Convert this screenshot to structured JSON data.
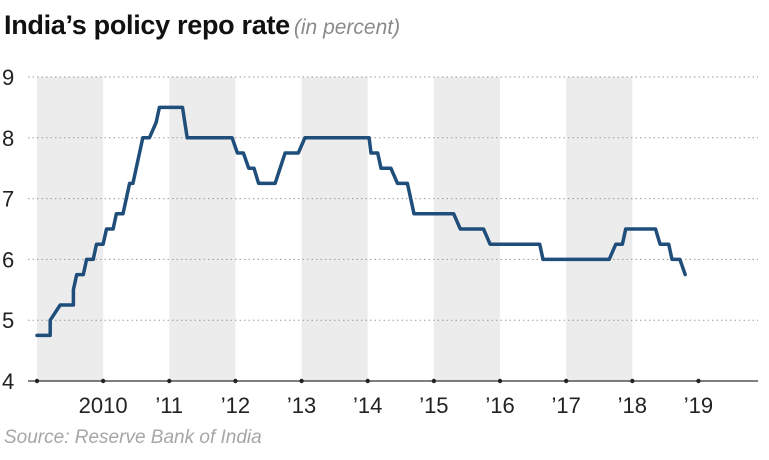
{
  "chart_data": {
    "type": "line",
    "title": "India’s policy repo rate",
    "subtitle": "(in percent)",
    "source": "Source: Reserve Bank of India",
    "xlabel": "",
    "ylabel": "",
    "ylim": [
      4,
      9
    ],
    "y_ticks": [
      4,
      5,
      6,
      7,
      8,
      9
    ],
    "x_range": [
      2009.0,
      2019.9
    ],
    "grid": "horizontal dotted",
    "x_labels": [
      {
        "label": "2010",
        "at": 2010.0
      },
      {
        "label": "’11",
        "at": 2011.0
      },
      {
        "label": "’12",
        "at": 2012.0
      },
      {
        "label": "’13",
        "at": 2013.0
      },
      {
        "label": "’14",
        "at": 2014.0
      },
      {
        "label": "’15",
        "at": 2015.0
      },
      {
        "label": "’16",
        "at": 2016.0
      },
      {
        "label": "’17",
        "at": 2017.0
      },
      {
        "label": "’18",
        "at": 2018.0
      },
      {
        "label": "’19",
        "at": 2019.0
      }
    ],
    "x_markers": [
      2009.0,
      2010.0,
      2011.0,
      2012.0,
      2013.0,
      2014.0,
      2015.0,
      2016.0,
      2017.0,
      2018.0,
      2019.0
    ],
    "shaded_years": [
      [
        2009.0,
        2010.0
      ],
      [
        2011.0,
        2012.0
      ],
      [
        2013.0,
        2014.0
      ],
      [
        2015.0,
        2016.0
      ],
      [
        2017.0,
        2018.0
      ]
    ],
    "series": [
      {
        "name": "Repo rate",
        "color": "#1f4e7a",
        "points": [
          [
            2009.0,
            4.75
          ],
          [
            2009.2,
            4.75
          ],
          [
            2009.2,
            5.0
          ],
          [
            2009.35,
            5.25
          ],
          [
            2009.55,
            5.25
          ],
          [
            2009.55,
            5.5
          ],
          [
            2009.6,
            5.75
          ],
          [
            2009.7,
            5.75
          ],
          [
            2009.75,
            6.0
          ],
          [
            2009.85,
            6.0
          ],
          [
            2009.9,
            6.25
          ],
          [
            2010.0,
            6.25
          ],
          [
            2010.05,
            6.5
          ],
          [
            2010.15,
            6.5
          ],
          [
            2010.2,
            6.75
          ],
          [
            2010.3,
            6.75
          ],
          [
            2010.4,
            7.25
          ],
          [
            2010.45,
            7.25
          ],
          [
            2010.5,
            7.5
          ],
          [
            2010.55,
            7.75
          ],
          [
            2010.6,
            8.0
          ],
          [
            2010.7,
            8.0
          ],
          [
            2010.8,
            8.25
          ],
          [
            2010.85,
            8.5
          ],
          [
            2011.2,
            8.5
          ],
          [
            2011.27,
            8.0
          ],
          [
            2011.95,
            8.0
          ],
          [
            2012.03,
            7.75
          ],
          [
            2012.12,
            7.75
          ],
          [
            2012.2,
            7.5
          ],
          [
            2012.28,
            7.5
          ],
          [
            2012.35,
            7.25
          ],
          [
            2012.6,
            7.25
          ],
          [
            2012.75,
            7.75
          ],
          [
            2012.95,
            7.75
          ],
          [
            2013.05,
            8.0
          ],
          [
            2014.02,
            8.0
          ],
          [
            2014.05,
            7.75
          ],
          [
            2014.15,
            7.75
          ],
          [
            2014.2,
            7.5
          ],
          [
            2014.35,
            7.5
          ],
          [
            2014.45,
            7.25
          ],
          [
            2014.6,
            7.25
          ],
          [
            2014.7,
            6.75
          ],
          [
            2015.3,
            6.75
          ],
          [
            2015.4,
            6.5
          ],
          [
            2015.75,
            6.5
          ],
          [
            2015.85,
            6.25
          ],
          [
            2016.6,
            6.25
          ],
          [
            2016.65,
            6.0
          ],
          [
            2017.65,
            6.0
          ],
          [
            2017.75,
            6.25
          ],
          [
            2017.85,
            6.25
          ],
          [
            2017.9,
            6.5
          ],
          [
            2018.35,
            6.5
          ],
          [
            2018.42,
            6.25
          ],
          [
            2018.55,
            6.25
          ],
          [
            2018.6,
            6.0
          ],
          [
            2018.72,
            6.0
          ],
          [
            2018.8,
            5.75
          ]
        ]
      }
    ]
  }
}
